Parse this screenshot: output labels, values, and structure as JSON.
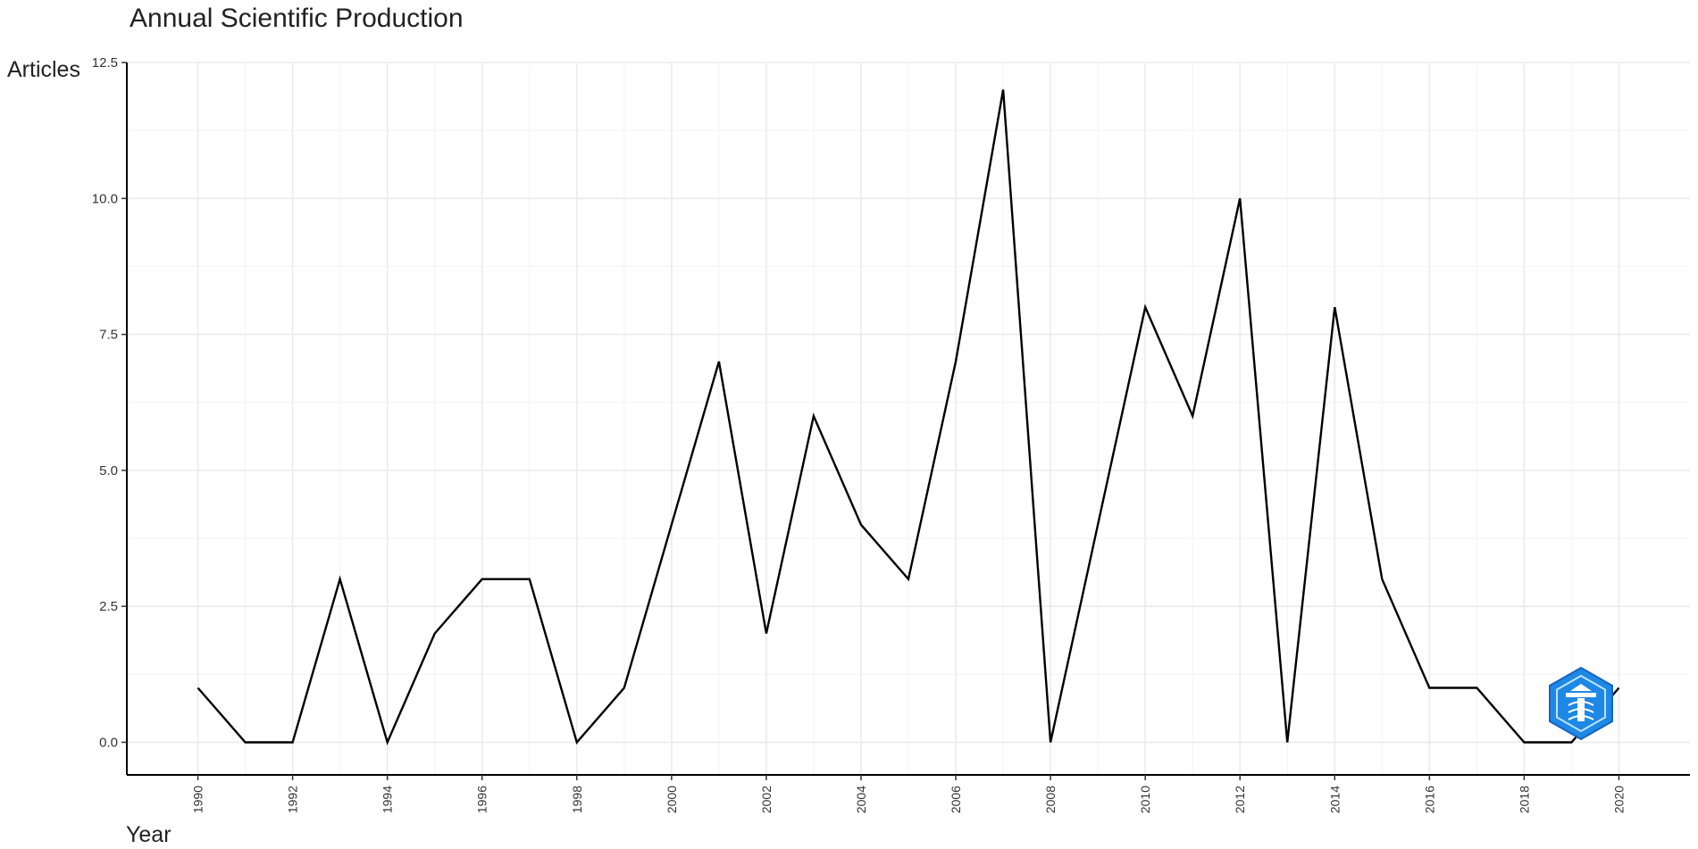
{
  "chart_data": {
    "type": "line",
    "title": "Annual Scientific Production",
    "xlabel": "Year",
    "ylabel": "Articles",
    "x": [
      1990,
      1991,
      1992,
      1993,
      1994,
      1995,
      1996,
      1997,
      1998,
      1999,
      2000,
      2001,
      2002,
      2003,
      2004,
      2005,
      2006,
      2007,
      2008,
      2009,
      2010,
      2011,
      2012,
      2013,
      2014,
      2015,
      2016,
      2017,
      2018,
      2019,
      2020
    ],
    "series": [
      {
        "values": [
          1,
          0,
          0,
          3,
          0,
          2,
          3,
          3,
          0,
          1,
          4,
          7,
          2,
          6,
          4,
          3,
          7,
          12,
          0,
          4,
          8,
          6,
          10,
          0,
          8,
          3,
          1,
          1,
          0,
          0,
          1
        ]
      }
    ],
    "xticks": [
      "1990",
      "1992",
      "1994",
      "1996",
      "1998",
      "2000",
      "2002",
      "2004",
      "2006",
      "2008",
      "2010",
      "2012",
      "2014",
      "2016",
      "2018",
      "2020"
    ],
    "yticks": [
      "0.0",
      "2.5",
      "5.0",
      "7.5",
      "10.0",
      "12.5"
    ],
    "xlim": [
      1988.5,
      2021.5
    ],
    "ylim": [
      -0.6,
      12.5
    ],
    "grid": true,
    "legend": "none",
    "line_color": "#000000",
    "watermark": {
      "icon": "hexagon-logo-icon",
      "color": "#1e88e5"
    }
  }
}
